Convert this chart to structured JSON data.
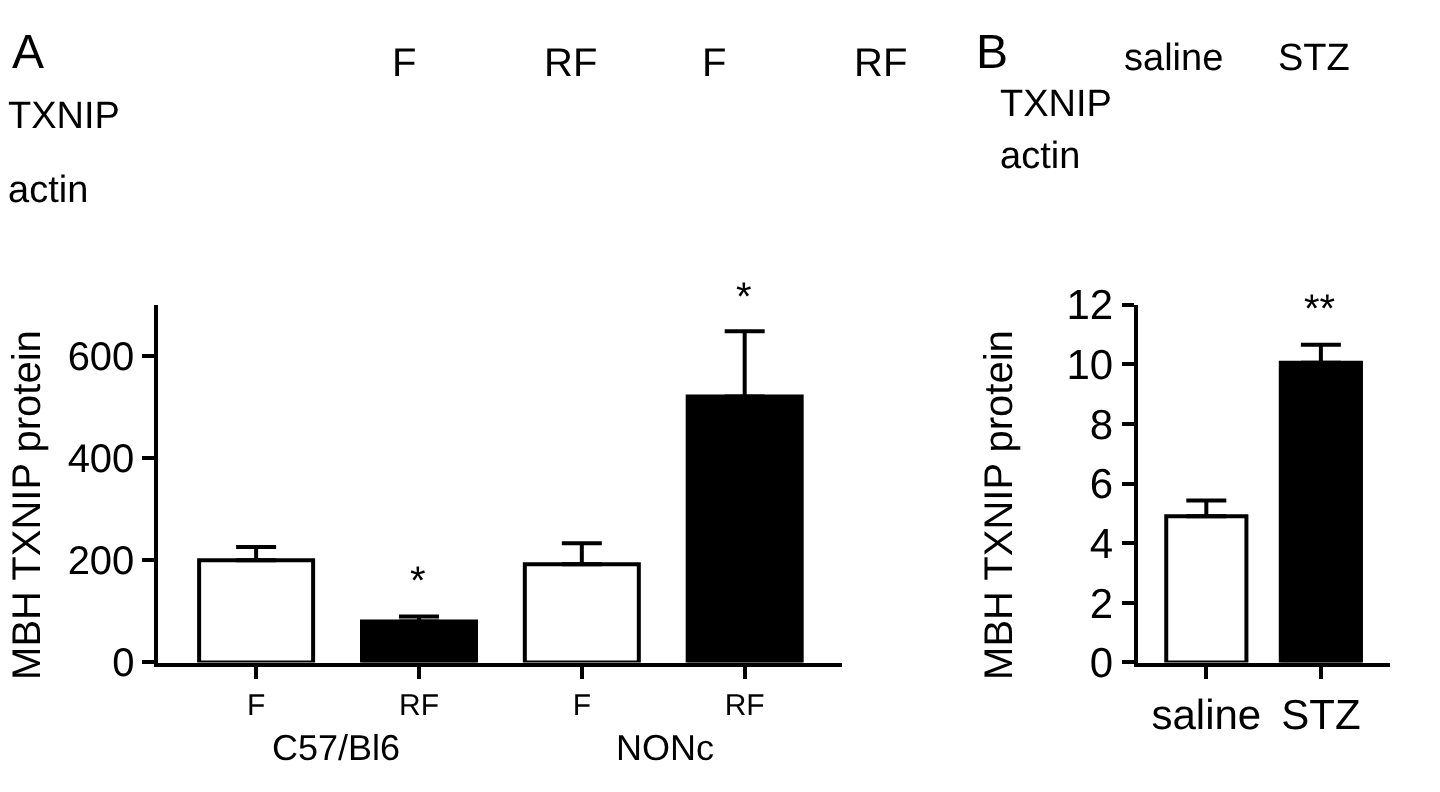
{
  "chart_data": [
    {
      "type": "bar",
      "ylabel": "MBH TXNIP protein",
      "categories": [
        "F",
        "RF",
        "F",
        "RF"
      ],
      "series": [
        {
          "colors": [
            "#ffffff",
            "#000000",
            "#ffffff",
            "#000000"
          ],
          "values": [
            200,
            80,
            192,
            520
          ],
          "errors": [
            [
              200,
              226
            ],
            [
              80,
              90
            ],
            [
              192,
              233
            ],
            [
              520,
              648
            ]
          ],
          "value_labels": [
            null,
            "*",
            null,
            "*"
          ]
        }
      ],
      "ylim": [
        0,
        700
      ],
      "yticks": [
        0,
        200,
        400,
        600
      ],
      "annotations": [
        "A",
        "F",
        "RF",
        "F",
        "RF",
        "TXNIP",
        "actin",
        "C57/Bl6",
        "NONc"
      ]
    },
    {
      "type": "bar",
      "ylabel": "MBH TXNIP protein",
      "categories": [
        "saline",
        "STZ"
      ],
      "series": [
        {
          "colors": [
            "#ffffff",
            "#000000"
          ],
          "values": [
            4.9,
            10.05
          ],
          "errors": [
            [
              4.9,
              5.43
            ],
            [
              10.05,
              10.65
            ]
          ],
          "value_labels": [
            null,
            "**"
          ]
        }
      ],
      "ylim": [
        0,
        12
      ],
      "yticks": [
        0,
        2,
        4,
        6,
        8,
        10,
        12
      ],
      "annotations": [
        "B",
        "saline",
        "STZ",
        "TXNIP",
        "actin"
      ]
    }
  ]
}
